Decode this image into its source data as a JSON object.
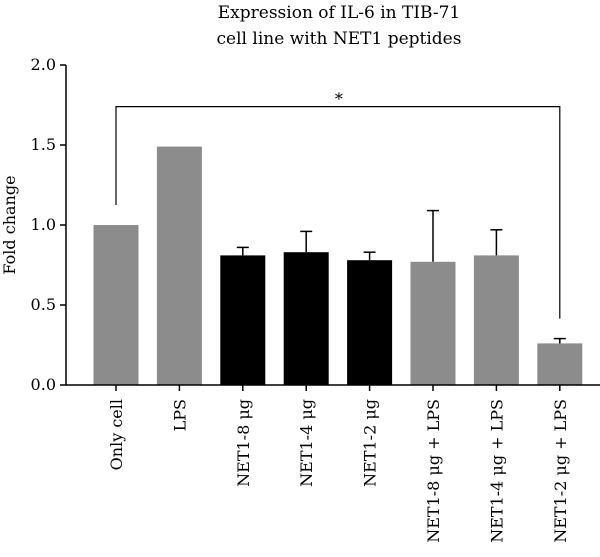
{
  "chart_data": {
    "type": "bar",
    "title_lines": [
      "Expression of IL-6 in TIB-71",
      "cell line with NET1 peptides"
    ],
    "ylabel": "Fold change",
    "xlabel": "",
    "ylim": [
      0,
      2.0
    ],
    "yticks": [
      "0.0",
      "0.5",
      "1.0",
      "1.5",
      "2.0"
    ],
    "grid": false,
    "categories": [
      "Only cell",
      "LPS",
      "NET1-8 μg",
      "NET1-4 μg",
      "NET1-2 μg",
      "NET1-8 μg + LPS",
      "NET1-4 μg + LPS",
      "NET1-2 μg + LPS"
    ],
    "values": [
      1.0,
      1.49,
      0.81,
      0.83,
      0.78,
      0.77,
      0.81,
      0.26
    ],
    "errors": [
      0,
      0,
      0.05,
      0.13,
      0.05,
      0.32,
      0.16,
      0.03
    ],
    "bar_colors": [
      "#8c8c8c",
      "#8c8c8c",
      "#000000",
      "#000000",
      "#000000",
      "#8c8c8c",
      "#8c8c8c",
      "#8c8c8c"
    ],
    "annotation": {
      "text": "*",
      "from_category": 0,
      "to_category": 7,
      "bracket_level": 1.74
    }
  }
}
